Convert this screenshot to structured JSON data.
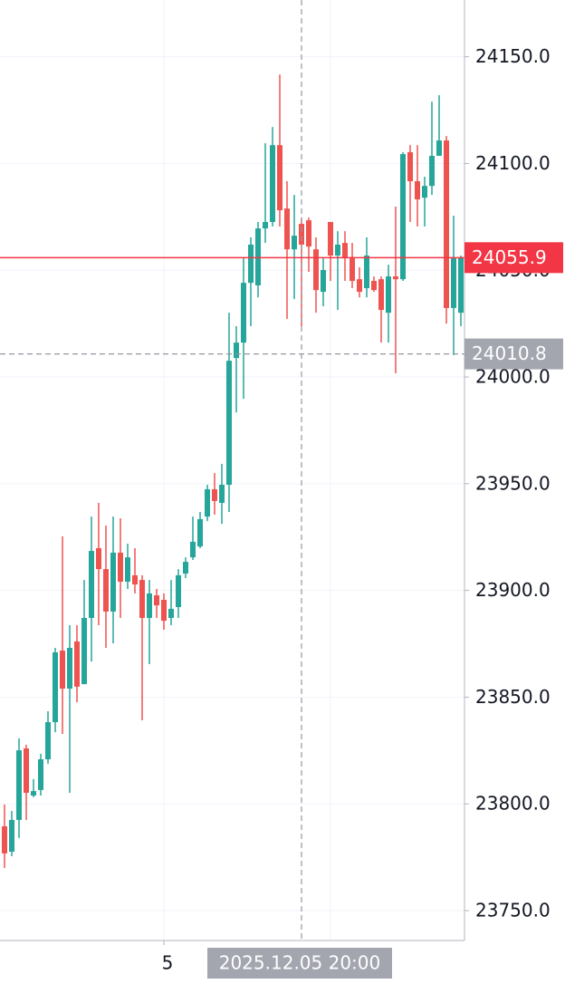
{
  "chart_data": {
    "type": "candlestick",
    "up_color": "#26a69a",
    "down_color": "#ef5350",
    "categories": [
      null,
      null,
      null,
      null,
      null,
      null,
      null,
      null,
      null,
      null,
      null,
      null,
      null,
      null,
      null,
      null,
      null,
      null,
      null,
      null,
      null,
      null,
      "5",
      null,
      null,
      null,
      null,
      null,
      null,
      null,
      null,
      null,
      null,
      null,
      null,
      null,
      null,
      null,
      null,
      null,
      null,
      null,
      null,
      null,
      null,
      null,
      null,
      null,
      null,
      null,
      null,
      null,
      null,
      null,
      null,
      null,
      null,
      null,
      null,
      null,
      null,
      null,
      null,
      null
    ],
    "open": [
      23789.5,
      23777.6,
      23792.5,
      23826.0,
      23803.9,
      23806.5,
      23820.9,
      23838.3,
      23871.8,
      23854.0,
      23876.1,
      23856.1,
      23887.1,
      23919.8,
      23910.0,
      23890.1,
      23917.7,
      23904.1,
      23907.1,
      23904.9,
      23887.1,
      23897.7,
      23895.6,
      23887.1,
      23892.2,
      23907.9,
      23915.5,
      23920.6,
      23934.6,
      23947.4,
      23941.0,
      23949.5,
      24008.9,
      24016.1,
      24044.1,
      24042.9,
      24069.6,
      24072.6,
      24108.6,
      24078.9,
      24059.8,
      24071.7,
      24073.4,
      24059.8,
      24039.9,
      24072.6,
      24056.9,
      24062.8,
      24055.6,
      24045.8,
      24041.6,
      24045.0,
      24045.8,
      24030.1,
      24047.1,
      24045.8,
      24105.3,
      24091.7,
      24084.0,
      24089.5,
      24103.6,
      24110.8,
      24032.3,
      24030.1
    ],
    "high": [
      23799.7,
      23796.7,
      23830.7,
      23827.7,
      23811.6,
      23823.5,
      23843.4,
      23873.1,
      23925.3,
      23883.7,
      23883.7,
      23904.9,
      23934.6,
      23941.0,
      23930.4,
      23934.6,
      23933.8,
      23921.9,
      23919.8,
      23907.1,
      23904.9,
      23900.7,
      23898.6,
      23904.9,
      23910.0,
      23915.5,
      23934.6,
      23936.8,
      23949.5,
      23955.0,
      23959.3,
      24030.1,
      24023.8,
      24055.6,
      24065.4,
      24072.6,
      24109.5,
      24117.1,
      24141.7,
      24091.7,
      24085.3,
      24074.7,
      24074.7,
      24065.4,
      24055.6,
      24072.6,
      24068.3,
      24068.3,
      24062.8,
      24051.4,
      24065.4,
      24047.1,
      24047.1,
      24052.6,
      24079.8,
      24105.3,
      24108.6,
      24108.6,
      24093.8,
      24129.0,
      24132.0,
      24112.9,
      24075.5,
      24056.9
    ],
    "low": [
      23770.0,
      23775.5,
      23784.0,
      23792.5,
      23803.1,
      23803.9,
      23818.8,
      23833.6,
      23832.8,
      23805.2,
      23847.6,
      23856.1,
      23866.7,
      23883.7,
      23873.1,
      23875.2,
      23887.1,
      23900.7,
      23898.6,
      23839.2,
      23865.5,
      23887.1,
      23881.6,
      23883.7,
      23887.1,
      23905.8,
      23914.3,
      23919.8,
      23932.5,
      23935.5,
      23931.2,
      23936.8,
      23983.4,
      23989.8,
      24023.8,
      24037.3,
      24062.8,
      24070.5,
      24070.5,
      24027.2,
      24036.5,
      24023.8,
      24049.2,
      24030.1,
      24033.1,
      24045.0,
      24031.4,
      24045.0,
      24041.6,
      24037.3,
      24037.3,
      24039.9,
      24016.1,
      24016.1,
      24001.7,
      24045.0,
      24072.6,
      24070.5,
      24070.5,
      24085.3,
      24103.6,
      24025.0,
      24010.2,
      24023.8
    ],
    "close": [
      23776.8,
      23792.5,
      23825.1,
      23805.2,
      23806.0,
      23820.9,
      23838.3,
      23871.0,
      23854.0,
      23873.1,
      23854.9,
      23887.1,
      23918.5,
      23910.0,
      23890.1,
      23917.7,
      23904.1,
      23915.5,
      23902.8,
      23887.1,
      23898.6,
      23893.0,
      23885.8,
      23891.4,
      23907.1,
      23913.4,
      23922.8,
      23933.4,
      23947.4,
      23941.9,
      23949.5,
      24007.6,
      24016.1,
      24044.1,
      24062.0,
      24069.6,
      24072.6,
      24108.6,
      24078.1,
      24059.8,
      24066.2,
      24062.0,
      24061.1,
      24040.7,
      24050.1,
      24056.9,
      24062.0,
      24055.6,
      24045.0,
      24039.9,
      24056.9,
      24040.7,
      24031.4,
      24047.1,
      24045.8,
      24104.4,
      24091.7,
      24083.2,
      24089.5,
      24103.6,
      24110.8,
      24032.3,
      24055.6,
      24055.9
    ],
    "ylim": [
      23736.0,
      24176.6
    ],
    "yticks": [
      {
        "value": 23750,
        "label": "23750.0"
      },
      {
        "value": 23800,
        "label": "23800.0"
      },
      {
        "value": 23850,
        "label": "23850.0"
      },
      {
        "value": 23900,
        "label": "23900.0"
      },
      {
        "value": 23950,
        "label": "23950.0"
      },
      {
        "value": 24000,
        "label": "24000.0"
      },
      {
        "value": 24050,
        "label": "24050.0"
      },
      {
        "value": 24100,
        "label": "24100.0"
      },
      {
        "value": 24150,
        "label": "24150.0"
      }
    ],
    "grid": true,
    "last_price": 24055.9,
    "last_price_color": "#f23645",
    "crosshair": {
      "price": 24010.8,
      "time": "2025.12.05 20:00"
    }
  }
}
